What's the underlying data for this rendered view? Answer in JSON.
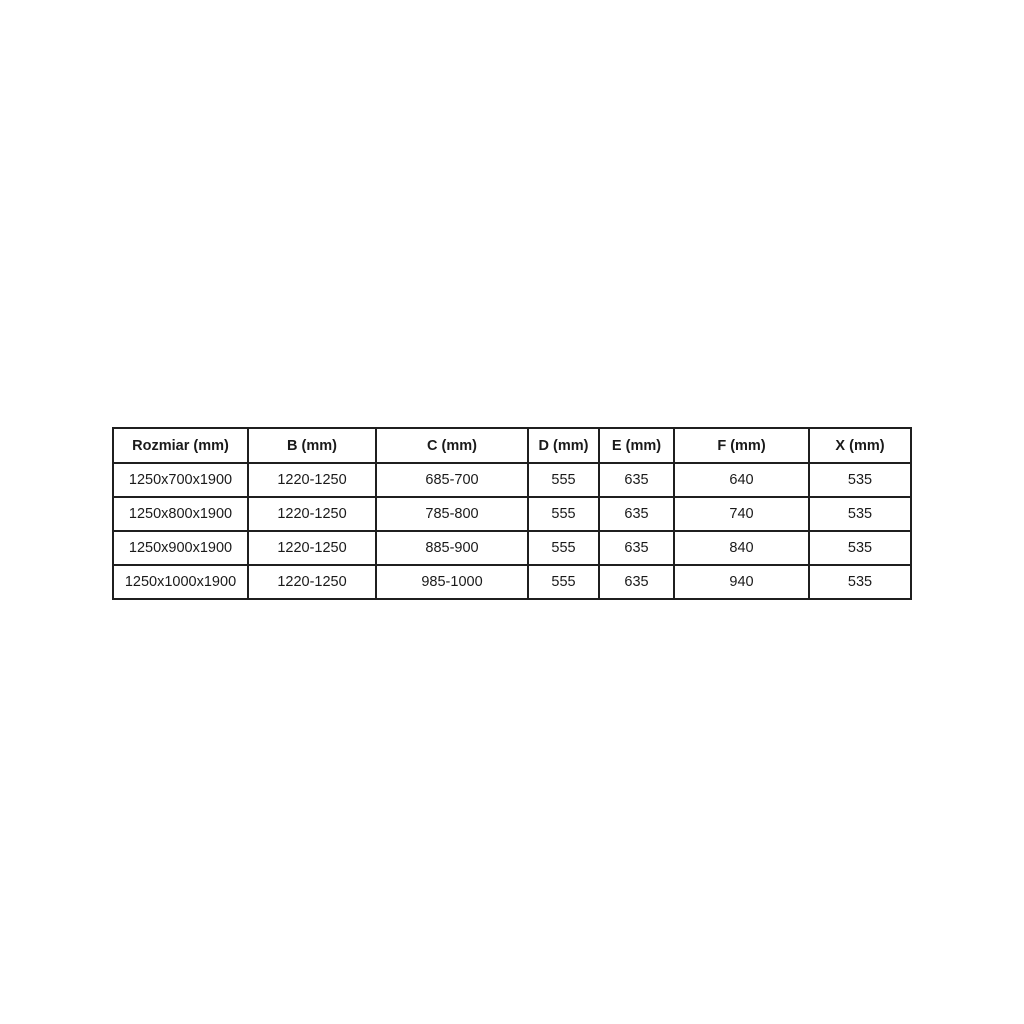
{
  "page": {
    "background_color": "#ffffff",
    "text_color": "#1a1a1a",
    "border_color": "#1f1f1f"
  },
  "chart_data": {
    "type": "table",
    "title": "",
    "headers": [
      "Rozmiar (mm)",
      "B (mm)",
      "C (mm)",
      "D (mm)",
      "E (mm)",
      "F (mm)",
      "X (mm)"
    ],
    "rows": [
      [
        "1250x700x1900",
        "1220-1250",
        "685-700",
        "555",
        "635",
        "640",
        "535"
      ],
      [
        "1250x800x1900",
        "1220-1250",
        "785-800",
        "555",
        "635",
        "740",
        "535"
      ],
      [
        "1250x900x1900",
        "1220-1250",
        "885-900",
        "555",
        "635",
        "840",
        "535"
      ],
      [
        "1250x1000x1900",
        "1220-1250",
        "985-1000",
        "555",
        "635",
        "940",
        "535"
      ]
    ]
  }
}
